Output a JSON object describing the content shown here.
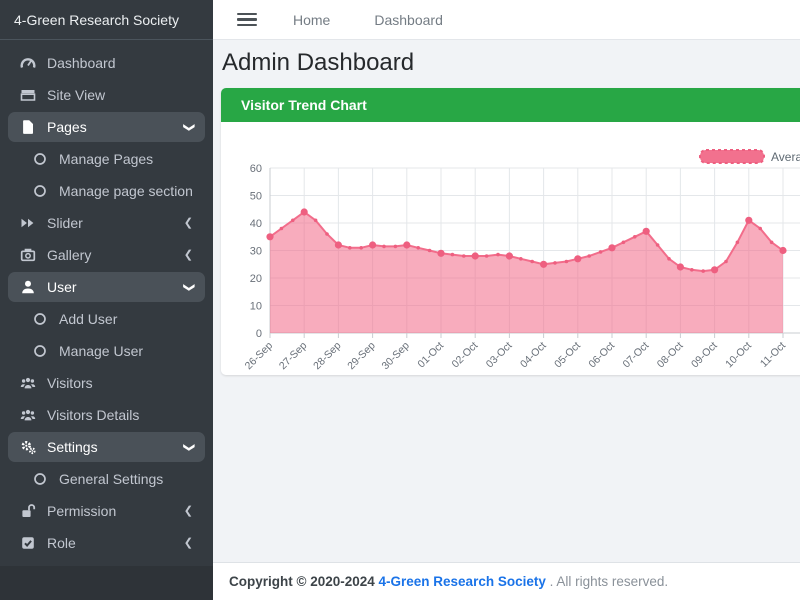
{
  "sidebar": {
    "brand": "4-Green Research Society",
    "items": [
      {
        "label": "Dashboard",
        "icon": "dashboard-icon",
        "type": "link"
      },
      {
        "label": "Site View",
        "icon": "site-view-icon",
        "type": "link"
      },
      {
        "label": "Pages",
        "icon": "pages-icon",
        "type": "group",
        "state": "expanded",
        "children": [
          {
            "label": "Manage Pages"
          },
          {
            "label": "Manage page section"
          }
        ]
      },
      {
        "label": "Slider",
        "icon": "slider-icon",
        "type": "group",
        "state": "collapsed"
      },
      {
        "label": "Gallery",
        "icon": "gallery-icon",
        "type": "group",
        "state": "collapsed"
      },
      {
        "label": "User",
        "icon": "user-icon",
        "type": "group",
        "state": "expanded",
        "children": [
          {
            "label": "Add User"
          },
          {
            "label": "Manage User"
          }
        ]
      },
      {
        "label": "Visitors",
        "icon": "visitors-icon",
        "type": "link"
      },
      {
        "label": "Visitors Details",
        "icon": "visitors-details-icon",
        "type": "link"
      },
      {
        "label": "Settings",
        "icon": "settings-icon",
        "type": "group",
        "state": "expanded",
        "children": [
          {
            "label": "General Settings"
          }
        ]
      },
      {
        "label": "Permission",
        "icon": "permission-icon",
        "type": "group",
        "state": "collapsed"
      },
      {
        "label": "Role",
        "icon": "role-icon",
        "type": "group",
        "state": "collapsed"
      }
    ]
  },
  "topbar": {
    "links": [
      "Home",
      "Dashboard"
    ]
  },
  "page_title": "Admin Dashboard",
  "panel_title": "Visitor Trend Chart",
  "chart_data": {
    "type": "area",
    "title": "Visitor Trend Chart",
    "legend": [
      {
        "label": "Average Visit",
        "color": "#f2718e"
      }
    ],
    "legend_position": "top-right",
    "grid": true,
    "categories": [
      "26-Sep",
      "27-Sep",
      "28-Sep",
      "29-Sep",
      "30-Sep",
      "01-Oct",
      "02-Oct",
      "03-Oct",
      "04-Oct",
      "05-Oct",
      "06-Oct",
      "07-Oct",
      "08-Oct",
      "09-Oct",
      "10-Oct",
      "11-Oct"
    ],
    "values": [
      35,
      44,
      32,
      32,
      32,
      29,
      28,
      28,
      25,
      27,
      31,
      37,
      24,
      23,
      41,
      30
    ],
    "points_per_day": 3,
    "dense_values": [
      35,
      38,
      41,
      44,
      41,
      36,
      32,
      31,
      31,
      32,
      31.5,
      31.5,
      32,
      31,
      30,
      29,
      28.5,
      28,
      28,
      28,
      28.5,
      28,
      27,
      26,
      25,
      25.5,
      26,
      27,
      28,
      29.5,
      31,
      33,
      35,
      37,
      32,
      27,
      24,
      23,
      22.5,
      23,
      26,
      33,
      41,
      38,
      33,
      30
    ],
    "xlabel": "",
    "ylabel": "",
    "ylim": [
      0,
      60
    ],
    "yticks": [
      0,
      10,
      20,
      30,
      40,
      50,
      60
    ],
    "colors": {
      "fill": "rgba(243,103,135,0.55)",
      "line": "#f26d8b",
      "point": "#ee5f80",
      "grid": "#e4e7ea",
      "axis": "#c9cdd1",
      "tick_text": "#697079"
    }
  },
  "footer": {
    "prefix": "Copyright © 2020-2024 ",
    "brand": "4-Green Research Society",
    "suffix": " . All rights reserved."
  }
}
